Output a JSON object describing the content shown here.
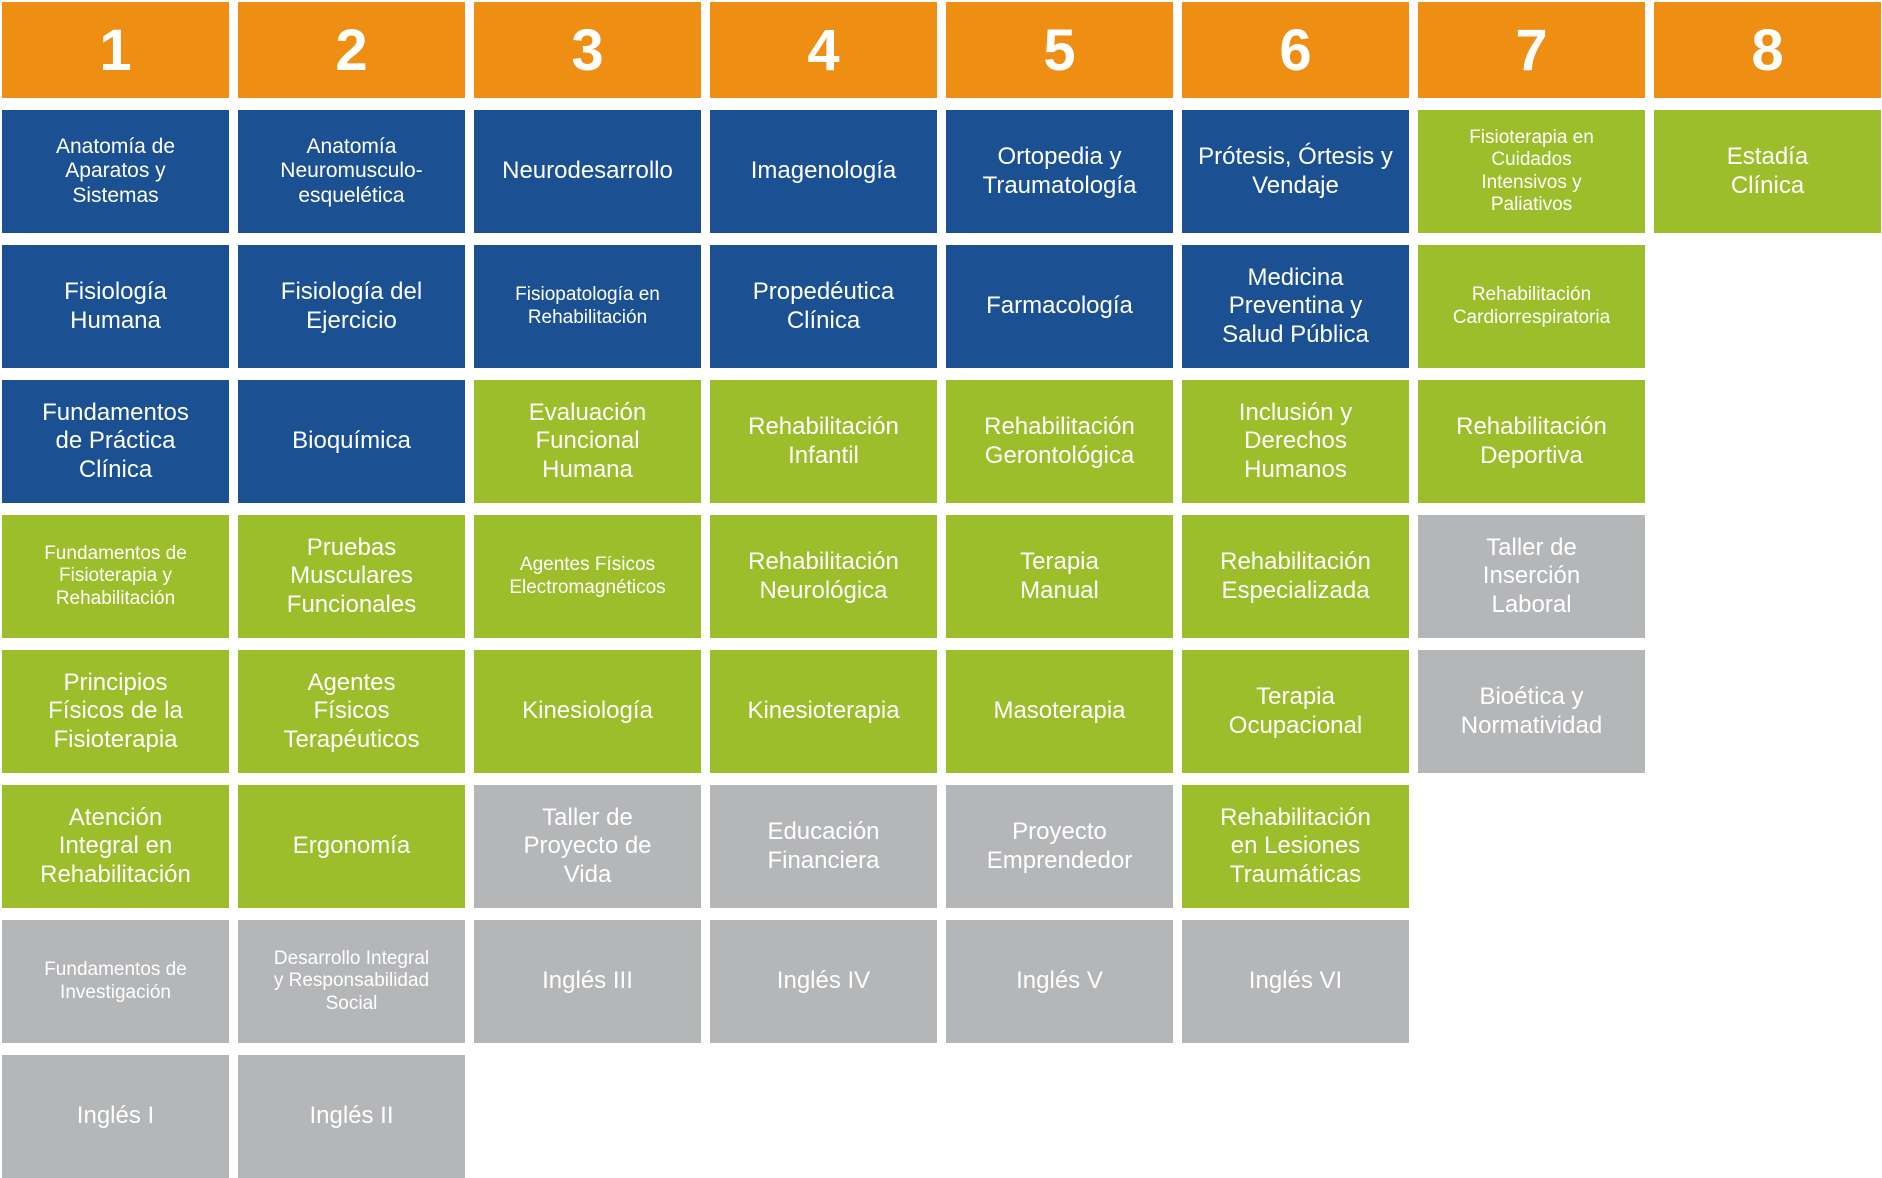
{
  "palette": {
    "orange": "#EE8E12",
    "blue": "#1B5193",
    "green": "#9BBE2A",
    "gray": "#B5B6B8",
    "text": "#FFFFFF",
    "background": "#FFFFFF"
  },
  "legend_types": {
    "blue": "blue-course",
    "green": "green-course",
    "gray": "gray-course"
  },
  "semesters": [
    {
      "number": "1",
      "courses": [
        {
          "label": "Anatomía de Aparatos y Sistemas",
          "type": "blue"
        },
        {
          "label": "Fisiología Humana",
          "type": "blue"
        },
        {
          "label": "Fundamentos de Práctica Clínica",
          "type": "blue"
        },
        {
          "label": "Fundamentos de Fisioterapia y Rehabilitación",
          "type": "green"
        },
        {
          "label": "Principios Físicos de la Fisioterapia",
          "type": "green"
        },
        {
          "label": "Atención Integral en Rehabilitación",
          "type": "green"
        },
        {
          "label": "Fundamentos de Investigación",
          "type": "gray"
        },
        {
          "label": "Inglés I",
          "type": "gray"
        }
      ]
    },
    {
      "number": "2",
      "courses": [
        {
          "label": "Anatomía Neuromusculo-esquelética",
          "type": "blue"
        },
        {
          "label": "Fisiología del Ejercicio",
          "type": "blue"
        },
        {
          "label": "Bioquímica",
          "type": "blue"
        },
        {
          "label": "Pruebas Musculares Funcionales",
          "type": "green"
        },
        {
          "label": "Agentes Físicos Terapéuticos",
          "type": "green"
        },
        {
          "label": "Ergonomía",
          "type": "green"
        },
        {
          "label": "Desarrollo Integral y Responsabilidad Social",
          "type": "gray"
        },
        {
          "label": "Inglés II",
          "type": "gray"
        }
      ]
    },
    {
      "number": "3",
      "courses": [
        {
          "label": "Neurodesarrollo",
          "type": "blue"
        },
        {
          "label": "Fisiopatología en Rehabilitación",
          "type": "blue"
        },
        {
          "label": "Evaluación Funcional Humana",
          "type": "green"
        },
        {
          "label": "Agentes Físicos Electromagnéticos",
          "type": "green"
        },
        {
          "label": "Kinesiología",
          "type": "green"
        },
        {
          "label": "Taller de Proyecto de Vida",
          "type": "gray"
        },
        {
          "label": "Inglés III",
          "type": "gray"
        }
      ]
    },
    {
      "number": "4",
      "courses": [
        {
          "label": "Imagenología",
          "type": "blue"
        },
        {
          "label": "Propedéutica Clínica",
          "type": "blue"
        },
        {
          "label": "Rehabilitación Infantil",
          "type": "green"
        },
        {
          "label": "Rehabilitación Neurológica",
          "type": "green"
        },
        {
          "label": "Kinesioterapia",
          "type": "green"
        },
        {
          "label": "Educación Financiera",
          "type": "gray"
        },
        {
          "label": "Inglés IV",
          "type": "gray"
        }
      ]
    },
    {
      "number": "5",
      "courses": [
        {
          "label": "Ortopedia y Traumatología",
          "type": "blue"
        },
        {
          "label": "Farmacología",
          "type": "blue"
        },
        {
          "label": "Rehabilitación Gerontológica",
          "type": "green"
        },
        {
          "label": "Terapia Manual",
          "type": "green"
        },
        {
          "label": "Masoterapia",
          "type": "green"
        },
        {
          "label": "Proyecto Emprendedor",
          "type": "gray"
        },
        {
          "label": "Inglés V",
          "type": "gray"
        }
      ]
    },
    {
      "number": "6",
      "courses": [
        {
          "label": "Prótesis, Órtesis y Vendaje",
          "type": "blue"
        },
        {
          "label": "Medicina Preventina y Salud Pública",
          "type": "blue"
        },
        {
          "label": "Inclusión y Derechos Humanos",
          "type": "green"
        },
        {
          "label": "Rehabilitación Especializada",
          "type": "green"
        },
        {
          "label": "Terapia Ocupacional",
          "type": "green"
        },
        {
          "label": "Rehabilitación en Lesiones Traumáticas",
          "type": "green"
        },
        {
          "label": "Inglés VI",
          "type": "gray"
        }
      ]
    },
    {
      "number": "7",
      "courses": [
        {
          "label": "Fisioterapia en Cuidados Intensivos y Paliativos",
          "type": "green"
        },
        {
          "label": "Rehabilitación Cardiorrespiratoria",
          "type": "green"
        },
        {
          "label": "Rehabilitación Deportiva",
          "type": "green"
        },
        {
          "label": "Taller de Inserción Laboral",
          "type": "gray"
        },
        {
          "label": "Bioética y Normatividad",
          "type": "gray"
        }
      ]
    },
    {
      "number": "8",
      "courses": [
        {
          "label": "Estadía Clínica",
          "type": "green"
        }
      ]
    }
  ]
}
